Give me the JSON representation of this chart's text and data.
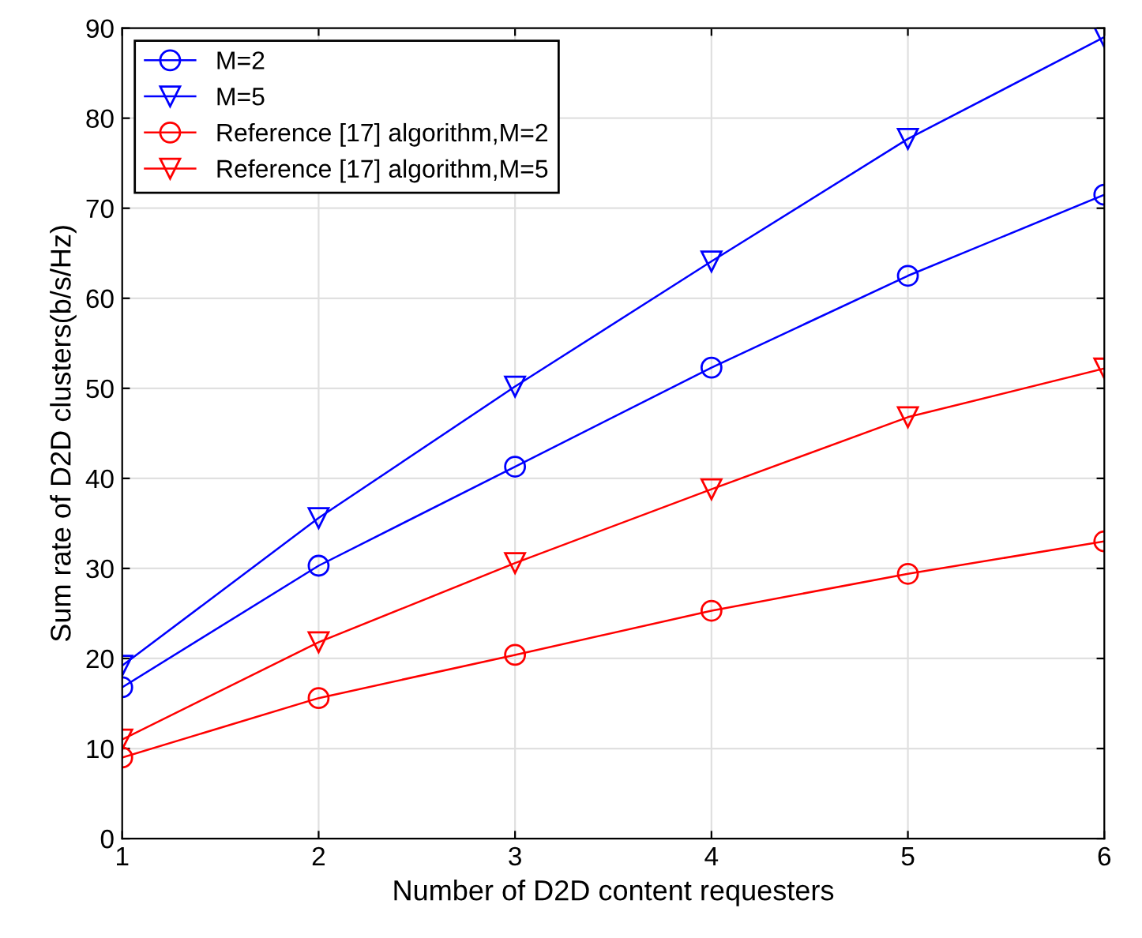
{
  "chart_data": {
    "type": "line",
    "xlabel": "Number of D2D content requesters",
    "ylabel": "Sum rate of D2D clusters(b/s/Hz)",
    "x": [
      1,
      2,
      3,
      4,
      5,
      6
    ],
    "series": [
      {
        "name": "M=2",
        "color": "#0000ff",
        "marker": "circle",
        "values": [
          16.8,
          30.3,
          41.3,
          52.3,
          62.5,
          71.5
        ]
      },
      {
        "name": "M=5",
        "color": "#0000ff",
        "marker": "triangle",
        "values": [
          19.2,
          35.6,
          50.2,
          64.1,
          77.7,
          89.0
        ]
      },
      {
        "name": "Reference [17] algorithm,M=2",
        "color": "#ff0000",
        "marker": "circle",
        "values": [
          9.0,
          15.6,
          20.4,
          25.3,
          29.4,
          33.0
        ]
      },
      {
        "name": "Reference [17] algorithm,M=5",
        "color": "#ff0000",
        "marker": "triangle",
        "values": [
          11.0,
          21.8,
          30.6,
          38.8,
          46.8,
          52.2
        ]
      }
    ],
    "xlim": [
      1,
      6
    ],
    "xticks": [
      1,
      2,
      3,
      4,
      5,
      6
    ],
    "ylim": [
      0,
      90
    ],
    "yticks": [
      0,
      10,
      20,
      30,
      40,
      50,
      60,
      70,
      80,
      90
    ],
    "grid": true,
    "legend": "top left",
    "line_style": "solid"
  }
}
